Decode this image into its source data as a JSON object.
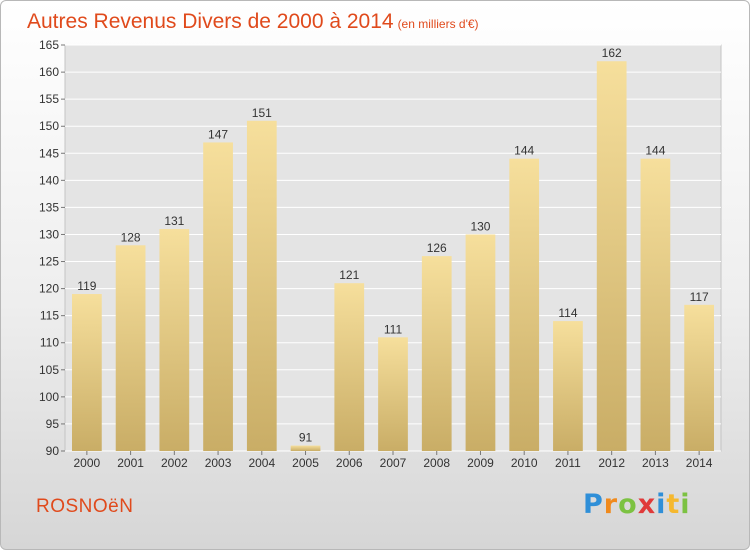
{
  "title": "Autres Revenus Divers de 2000 à 2014",
  "subtitle": "(en milliers d'€)",
  "commune": "ROSNOëN",
  "logo": {
    "letters": [
      "P",
      "r",
      "o",
      "x",
      "i",
      "t",
      "i"
    ],
    "colors": [
      "#2f8fd8",
      "#f08a1c",
      "#7cc242",
      "#e03a3a",
      "#2f8fd8",
      "#f5b82e",
      "#7cc242"
    ]
  },
  "chart_data": {
    "type": "bar",
    "categories": [
      "2000",
      "2001",
      "2002",
      "2003",
      "2004",
      "2005",
      "2006",
      "2007",
      "2008",
      "2009",
      "2010",
      "2011",
      "2012",
      "2013",
      "2014"
    ],
    "values": [
      119,
      128,
      131,
      147,
      151,
      91,
      121,
      111,
      126,
      130,
      144,
      114,
      162,
      144,
      117
    ],
    "ylim": [
      90,
      165
    ],
    "yticks": [
      90,
      95,
      100,
      105,
      110,
      115,
      120,
      125,
      130,
      135,
      140,
      145,
      150,
      155,
      160,
      165
    ],
    "grid": true,
    "bar_color": "#e9cf86"
  }
}
